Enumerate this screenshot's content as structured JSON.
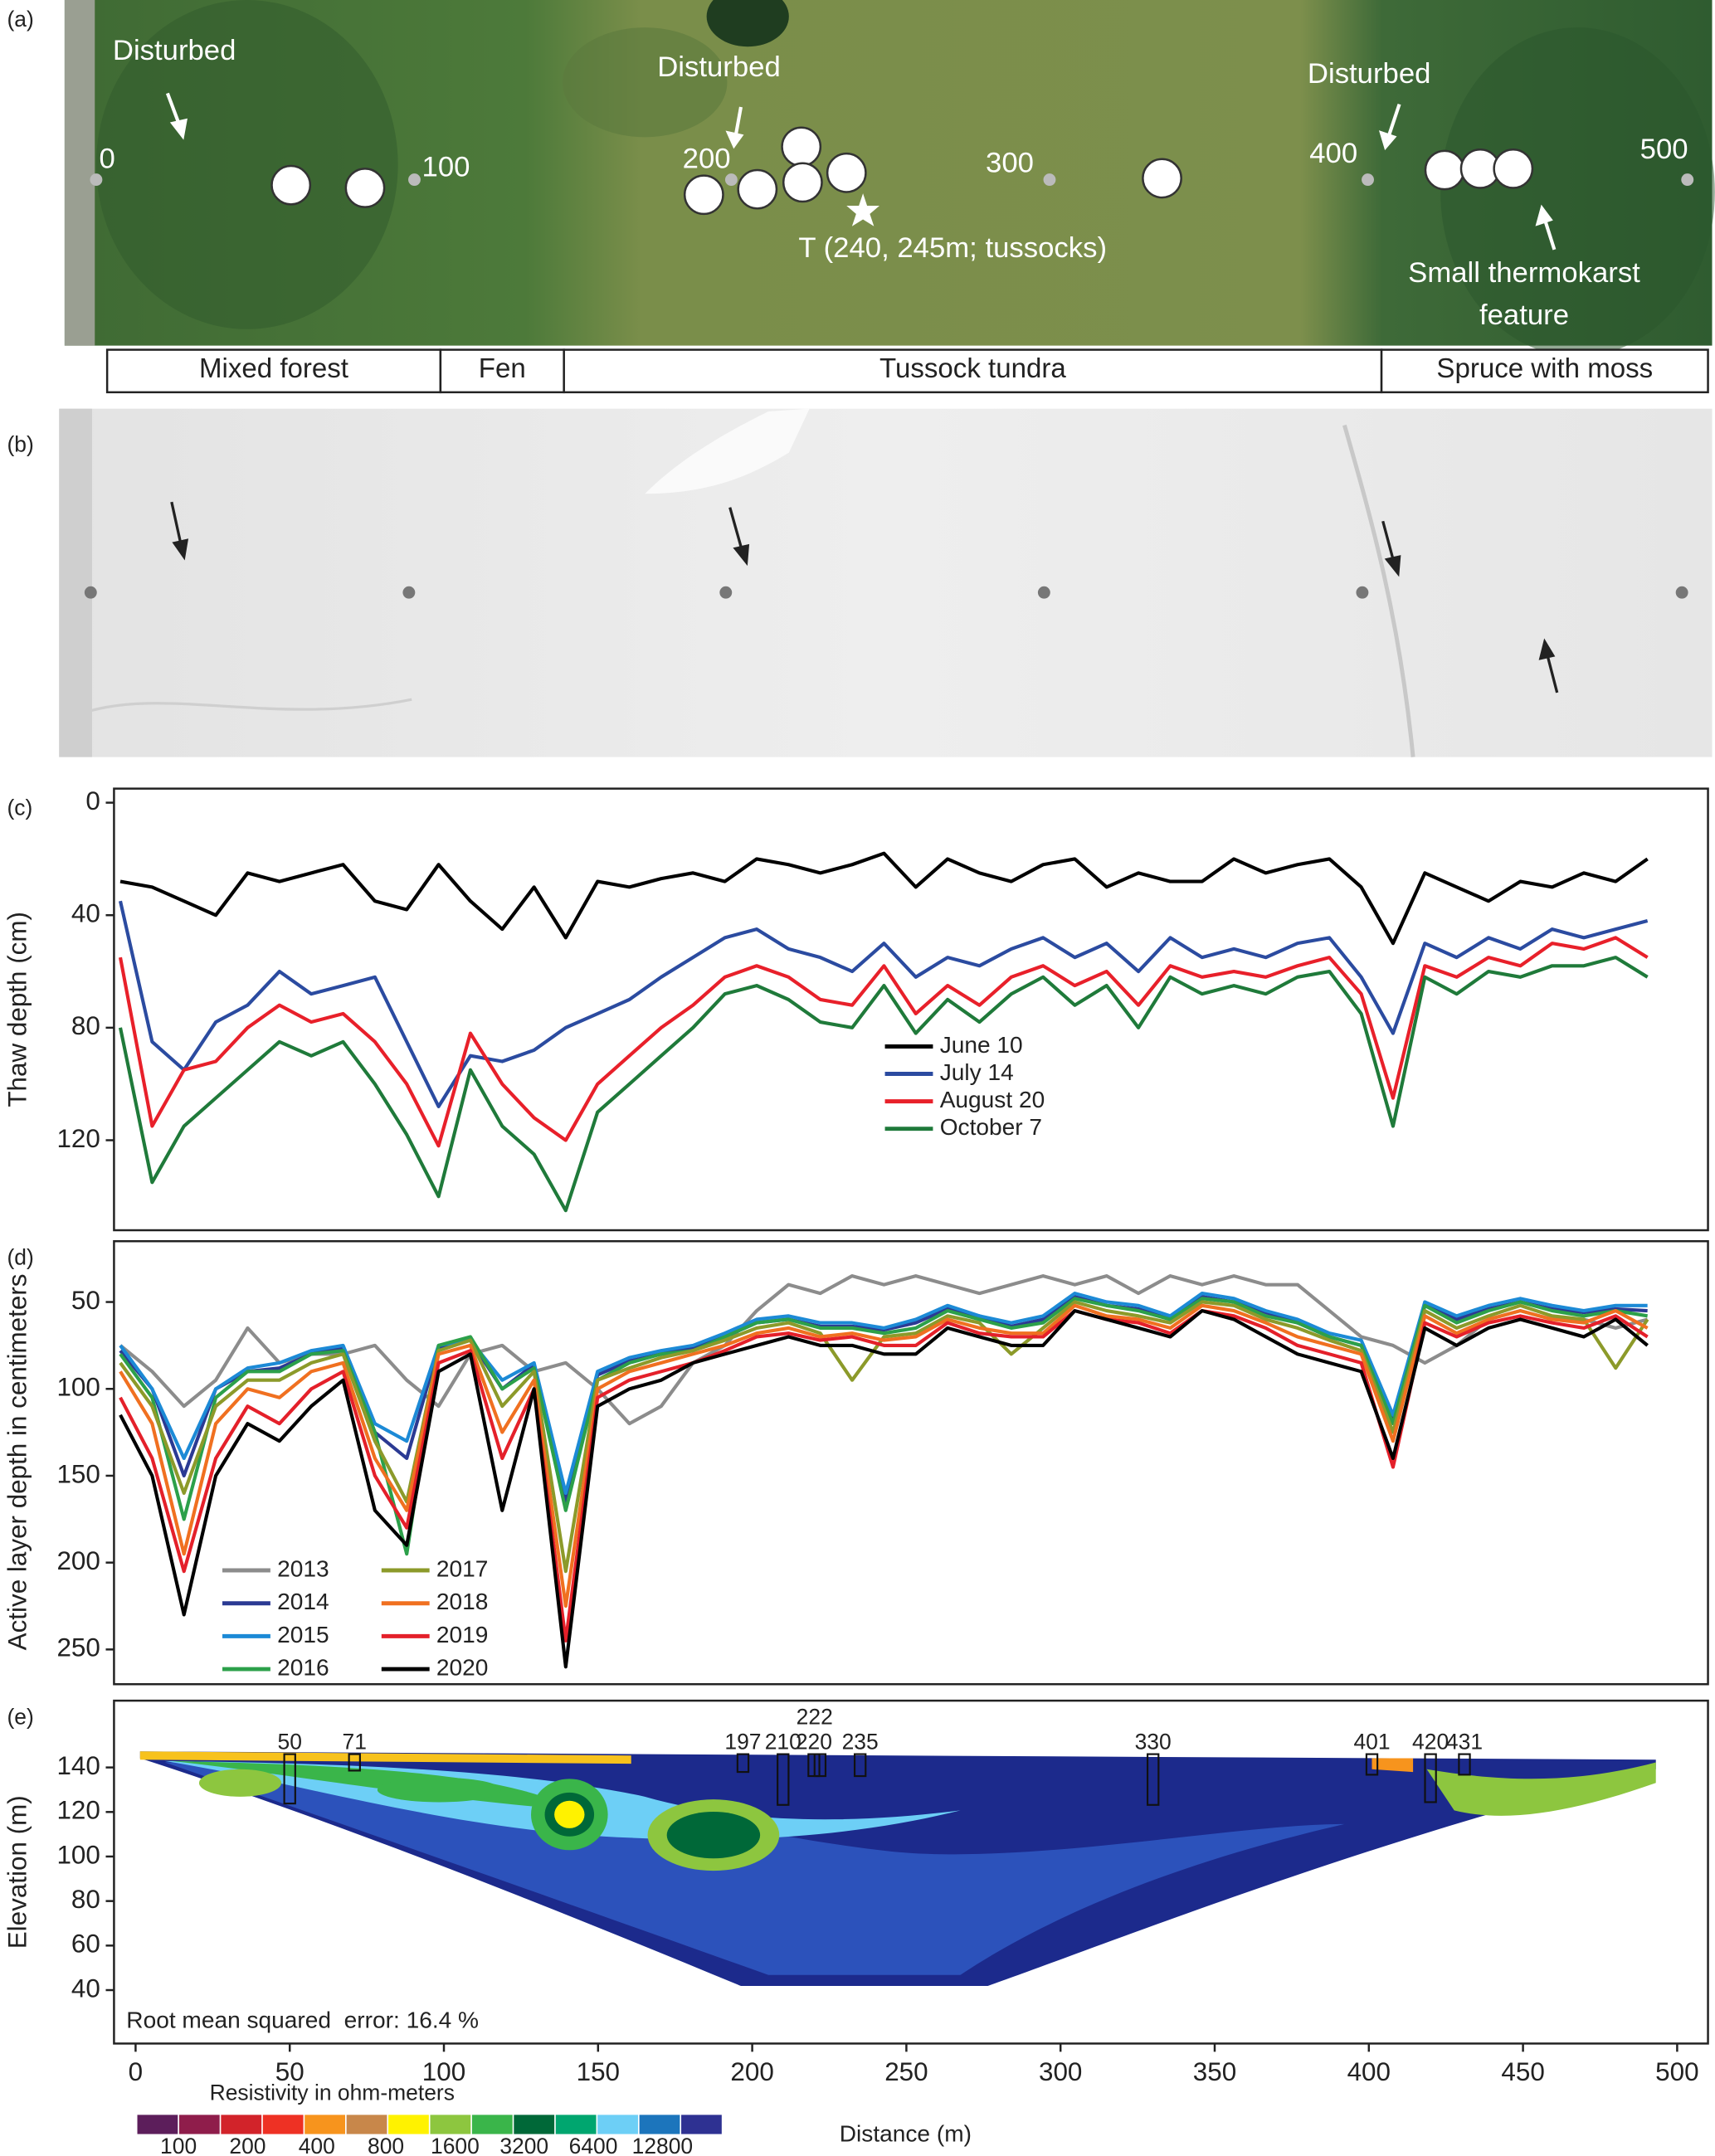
{
  "panel_labels": [
    "(a)",
    "(b)",
    "(c)",
    "(d)",
    "(e)"
  ],
  "photo": {
    "annotations": [
      "Disturbed",
      "Disturbed",
      "Disturbed",
      "T (240, 245m; tussocks)"
    ],
    "thermokarst_label": [
      "Small thermokarst",
      "feature"
    ],
    "distance_labels": [
      0,
      100,
      200,
      300,
      400,
      500
    ],
    "zones": [
      "Mixed forest",
      "Fen",
      "Tussock tundra",
      "Spruce with moss"
    ]
  },
  "chart_data": [
    {
      "type": "line",
      "ylabel": "Thaw depth (cm)",
      "y_inverted": true,
      "legend": "center",
      "x": [
        0,
        10,
        20,
        30,
        40,
        50,
        60,
        70,
        80,
        90,
        100,
        110,
        120,
        130,
        140,
        150,
        160,
        170,
        180,
        190,
        200,
        210,
        220,
        230,
        240,
        250,
        260,
        270,
        280,
        290,
        300,
        310,
        320,
        330,
        340,
        350,
        360,
        370,
        380,
        390,
        400,
        410,
        420,
        430,
        440,
        450,
        460,
        470,
        480
      ],
      "xlim": [
        -2,
        499
      ],
      "ylim": [
        -5,
        152
      ],
      "yticks": [
        0,
        40,
        80,
        120
      ],
      "series": [
        {
          "name": "June 10",
          "color": "#000000",
          "values": [
            28,
            30,
            35,
            40,
            25,
            28,
            25,
            22,
            35,
            38,
            22,
            35,
            45,
            30,
            48,
            28,
            30,
            27,
            25,
            28,
            20,
            22,
            25,
            22,
            18,
            30,
            20,
            25,
            28,
            22,
            20,
            30,
            25,
            28,
            28,
            20,
            25,
            22,
            20,
            30,
            50,
            25,
            30,
            35,
            28,
            30,
            25,
            28,
            20
          ]
        },
        {
          "name": "July 14",
          "color": "#2b4ba0",
          "values": [
            35,
            85,
            95,
            78,
            72,
            60,
            68,
            65,
            62,
            85,
            108,
            90,
            92,
            88,
            80,
            75,
            70,
            62,
            55,
            48,
            45,
            52,
            55,
            60,
            50,
            62,
            55,
            58,
            52,
            48,
            55,
            50,
            60,
            48,
            55,
            52,
            55,
            50,
            48,
            62,
            82,
            50,
            55,
            48,
            52,
            45,
            48,
            45,
            42
          ]
        },
        {
          "name": "August 20",
          "color": "#e8202a",
          "values": [
            55,
            115,
            95,
            92,
            80,
            72,
            78,
            75,
            85,
            100,
            122,
            82,
            100,
            112,
            120,
            100,
            90,
            80,
            72,
            62,
            58,
            62,
            70,
            72,
            58,
            75,
            65,
            72,
            62,
            58,
            65,
            60,
            72,
            58,
            62,
            60,
            62,
            58,
            55,
            68,
            105,
            58,
            62,
            55,
            58,
            50,
            52,
            48,
            55
          ]
        },
        {
          "name": "October 7",
          "color": "#1f7a3a",
          "values": [
            80,
            135,
            115,
            105,
            95,
            85,
            90,
            85,
            100,
            118,
            140,
            95,
            115,
            125,
            145,
            110,
            100,
            90,
            80,
            68,
            65,
            70,
            78,
            80,
            65,
            82,
            70,
            78,
            68,
            62,
            72,
            65,
            80,
            62,
            68,
            65,
            68,
            62,
            60,
            75,
            115,
            62,
            68,
            60,
            62,
            58,
            58,
            55,
            62
          ]
        }
      ]
    },
    {
      "type": "line",
      "ylabel": "Active layer depth in centimeters",
      "y_inverted": true,
      "legend": "lower left",
      "x": [
        0,
        10,
        20,
        30,
        40,
        50,
        60,
        70,
        80,
        90,
        100,
        110,
        120,
        130,
        140,
        150,
        160,
        170,
        180,
        190,
        200,
        210,
        220,
        230,
        240,
        250,
        260,
        270,
        280,
        290,
        300,
        310,
        320,
        330,
        340,
        350,
        360,
        370,
        380,
        390,
        400,
        410,
        420,
        430,
        440,
        450,
        460,
        470,
        480
      ],
      "xlim": [
        -2,
        499
      ],
      "ylim": [
        15,
        270
      ],
      "yticks": [
        50,
        100,
        150,
        200,
        250
      ],
      "series": [
        {
          "name": "2013",
          "color": "#8c8c8c",
          "values": [
            75,
            90,
            110,
            95,
            65,
            85,
            80,
            80,
            75,
            95,
            110,
            80,
            75,
            90,
            85,
            100,
            120,
            110,
            85,
            75,
            55,
            40,
            45,
            35,
            40,
            35,
            40,
            45,
            40,
            35,
            40,
            35,
            45,
            35,
            40,
            35,
            40,
            40,
            55,
            70,
            75,
            85,
            75,
            60,
            55,
            60,
            60,
            65,
            60
          ]
        },
        {
          "name": "2014",
          "color": "#2b3a93",
          "values": [
            78,
            100,
            150,
            100,
            90,
            88,
            80,
            76,
            125,
            140,
            76,
            72,
            100,
            86,
            165,
            92,
            84,
            80,
            76,
            70,
            62,
            60,
            64,
            64,
            66,
            62,
            54,
            58,
            64,
            60,
            47,
            52,
            54,
            60,
            47,
            50,
            56,
            62,
            70,
            75,
            118,
            52,
            60,
            54,
            50,
            54,
            56,
            54,
            55
          ]
        },
        {
          "name": "2015",
          "color": "#1c8ad6",
          "values": [
            75,
            100,
            140,
            100,
            88,
            85,
            78,
            75,
            120,
            130,
            75,
            72,
            95,
            85,
            160,
            90,
            82,
            78,
            75,
            68,
            60,
            58,
            62,
            62,
            65,
            60,
            52,
            58,
            62,
            58,
            45,
            50,
            52,
            58,
            45,
            48,
            55,
            60,
            68,
            72,
            115,
            50,
            58,
            52,
            48,
            52,
            55,
            52,
            52
          ]
        },
        {
          "name": "2016",
          "color": "#2ca04a",
          "values": [
            80,
            105,
            175,
            105,
            90,
            90,
            80,
            78,
            125,
            195,
            75,
            70,
            100,
            88,
            170,
            95,
            85,
            80,
            78,
            70,
            62,
            60,
            65,
            65,
            68,
            65,
            55,
            60,
            65,
            62,
            48,
            52,
            55,
            60,
            48,
            50,
            58,
            62,
            70,
            75,
            120,
            52,
            62,
            55,
            50,
            55,
            58,
            55,
            58
          ]
        },
        {
          "name": "2017",
          "color": "#8c9a2a",
          "values": [
            85,
            110,
            160,
            110,
            95,
            95,
            85,
            80,
            130,
            165,
            78,
            72,
            110,
            90,
            205,
            95,
            88,
            82,
            78,
            72,
            65,
            62,
            68,
            95,
            70,
            68,
            58,
            62,
            80,
            65,
            50,
            55,
            58,
            62,
            50,
            52,
            60,
            65,
            72,
            78,
            125,
            55,
            65,
            58,
            52,
            58,
            60,
            88,
            60
          ]
        },
        {
          "name": "2018",
          "color": "#f07020",
          "values": [
            90,
            120,
            195,
            120,
            100,
            105,
            90,
            85,
            140,
            170,
            80,
            75,
            125,
            95,
            225,
            100,
            90,
            85,
            80,
            75,
            68,
            65,
            70,
            68,
            72,
            70,
            60,
            65,
            68,
            68,
            52,
            58,
            60,
            65,
            52,
            55,
            62,
            70,
            75,
            80,
            130,
            58,
            68,
            60,
            55,
            60,
            62,
            55,
            65
          ]
        },
        {
          "name": "2019",
          "color": "#e4202a",
          "values": [
            105,
            140,
            205,
            140,
            110,
            120,
            100,
            90,
            150,
            180,
            85,
            78,
            140,
            100,
            245,
            105,
            95,
            90,
            85,
            78,
            70,
            68,
            72,
            70,
            75,
            75,
            62,
            68,
            70,
            70,
            55,
            60,
            62,
            68,
            55,
            58,
            65,
            75,
            80,
            85,
            145,
            62,
            70,
            62,
            58,
            62,
            65,
            58,
            70
          ]
        },
        {
          "name": "2020",
          "color": "#000000",
          "values": [
            115,
            150,
            230,
            150,
            120,
            130,
            110,
            95,
            170,
            190,
            90,
            80,
            170,
            100,
            260,
            110,
            100,
            95,
            85,
            80,
            75,
            70,
            75,
            75,
            80,
            80,
            65,
            70,
            75,
            75,
            55,
            60,
            65,
            70,
            55,
            60,
            70,
            80,
            85,
            90,
            140,
            65,
            75,
            65,
            60,
            65,
            70,
            60,
            75
          ]
        }
      ]
    },
    {
      "type": "contour",
      "ylabel": "Elevation (m)",
      "xlabel": "Distance (m)",
      "annotation": "Root mean squared  error: 16.4 %",
      "xlim": [
        -7,
        510
      ],
      "ylim": [
        16,
        170
      ],
      "xticks": [
        0,
        50,
        100,
        150,
        200,
        250,
        300,
        350,
        400,
        450,
        500
      ],
      "yticks": [
        40,
        60,
        80,
        100,
        120,
        140
      ],
      "boreholes": [
        50,
        71,
        197,
        210,
        220,
        222,
        235,
        330,
        401,
        420,
        431
      ],
      "colorbar": {
        "title": "Resistivity in ohm-meters",
        "colors": [
          "#5c1e5b",
          "#8f1d4b",
          "#d2232a",
          "#ee3124",
          "#f7941d",
          "#c8874a",
          "#fff200",
          "#8dc63f",
          "#3ab54a",
          "#006838",
          "#00a66f",
          "#6dcff6",
          "#1c75bc",
          "#2e3192"
        ],
        "labels": [
          100,
          200,
          400,
          800,
          1600,
          3200,
          6400,
          12800
        ]
      }
    }
  ]
}
